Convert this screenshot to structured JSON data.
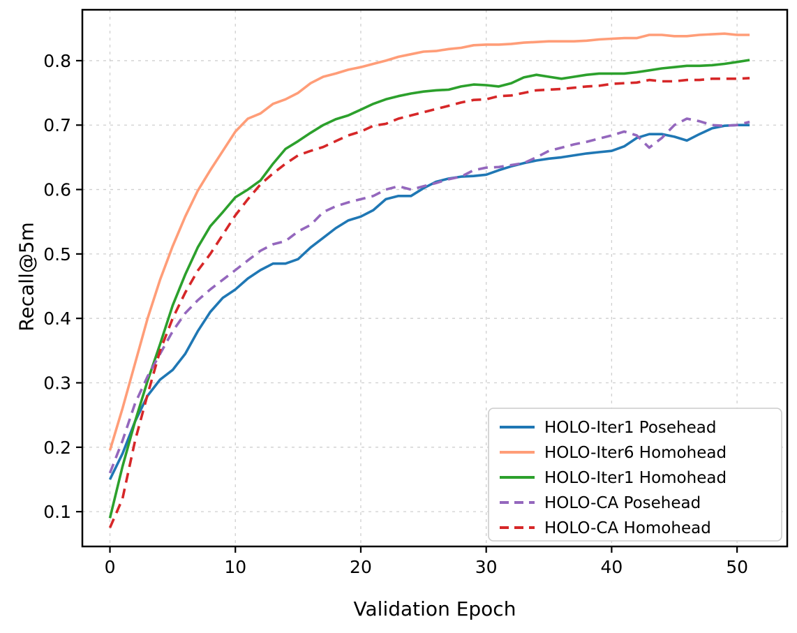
{
  "chart_data": {
    "type": "line",
    "title": "",
    "xlabel": "Validation Epoch",
    "ylabel": "Recall@5m",
    "xlim": [
      -2.2,
      54
    ],
    "ylim": [
      0.046,
      0.879
    ],
    "xticks": [
      0,
      10,
      20,
      30,
      40,
      50
    ],
    "yticks": [
      0.1,
      0.2,
      0.3,
      0.4,
      0.5,
      0.6,
      0.7,
      0.8
    ],
    "grid": true,
    "grid_style": "dashed",
    "legend_position": "lower right",
    "x": [
      0,
      1,
      2,
      3,
      4,
      5,
      6,
      7,
      8,
      9,
      10,
      11,
      12,
      13,
      14,
      15,
      16,
      17,
      18,
      19,
      20,
      21,
      22,
      23,
      24,
      25,
      26,
      27,
      28,
      29,
      30,
      31,
      32,
      33,
      34,
      35,
      36,
      37,
      38,
      39,
      40,
      41,
      42,
      43,
      44,
      45,
      46,
      47,
      48,
      49,
      50,
      51
    ],
    "series": [
      {
        "name": "HOLO-Iter1 Posehead",
        "color": "#1f77b4",
        "style": "solid",
        "values": [
          0.15,
          0.19,
          0.24,
          0.28,
          0.305,
          0.32,
          0.345,
          0.38,
          0.41,
          0.432,
          0.445,
          0.462,
          0.475,
          0.485,
          0.485,
          0.492,
          0.51,
          0.525,
          0.54,
          0.552,
          0.558,
          0.568,
          0.585,
          0.59,
          0.59,
          0.602,
          0.612,
          0.617,
          0.62,
          0.621,
          0.623,
          0.63,
          0.636,
          0.641,
          0.645,
          0.648,
          0.65,
          0.653,
          0.656,
          0.658,
          0.66,
          0.667,
          0.68,
          0.686,
          0.686,
          0.682,
          0.676,
          0.686,
          0.695,
          0.699,
          0.7,
          0.7
        ]
      },
      {
        "name": "HOLO-Iter6 Homohead",
        "color": "#ff9d78",
        "style": "solid",
        "values": [
          0.195,
          0.26,
          0.33,
          0.4,
          0.46,
          0.512,
          0.558,
          0.598,
          0.63,
          0.66,
          0.69,
          0.71,
          0.718,
          0.733,
          0.74,
          0.75,
          0.765,
          0.775,
          0.78,
          0.786,
          0.79,
          0.795,
          0.8,
          0.806,
          0.81,
          0.814,
          0.815,
          0.818,
          0.82,
          0.824,
          0.825,
          0.825,
          0.826,
          0.828,
          0.829,
          0.83,
          0.83,
          0.83,
          0.831,
          0.833,
          0.834,
          0.835,
          0.835,
          0.84,
          0.84,
          0.838,
          0.838,
          0.84,
          0.841,
          0.842,
          0.84,
          0.84
        ]
      },
      {
        "name": "HOLO-Iter1 Homohead",
        "color": "#2ca02c",
        "style": "solid",
        "values": [
          0.09,
          0.17,
          0.24,
          0.303,
          0.36,
          0.42,
          0.468,
          0.51,
          0.543,
          0.565,
          0.588,
          0.6,
          0.614,
          0.64,
          0.663,
          0.675,
          0.688,
          0.7,
          0.709,
          0.715,
          0.724,
          0.733,
          0.74,
          0.745,
          0.749,
          0.752,
          0.754,
          0.755,
          0.76,
          0.763,
          0.762,
          0.76,
          0.765,
          0.774,
          0.778,
          0.775,
          0.772,
          0.775,
          0.778,
          0.78,
          0.78,
          0.78,
          0.782,
          0.785,
          0.788,
          0.79,
          0.792,
          0.792,
          0.793,
          0.795,
          0.798,
          0.801
        ]
      },
      {
        "name": "HOLO-CA Posehead",
        "color": "#9467bd",
        "style": "dashed",
        "values": [
          0.16,
          0.21,
          0.268,
          0.31,
          0.345,
          0.38,
          0.408,
          0.428,
          0.445,
          0.46,
          0.475,
          0.49,
          0.505,
          0.515,
          0.52,
          0.535,
          0.545,
          0.565,
          0.574,
          0.58,
          0.585,
          0.59,
          0.6,
          0.605,
          0.6,
          0.605,
          0.61,
          0.616,
          0.62,
          0.63,
          0.634,
          0.635,
          0.638,
          0.641,
          0.65,
          0.66,
          0.665,
          0.67,
          0.674,
          0.679,
          0.684,
          0.69,
          0.684,
          0.665,
          0.68,
          0.7,
          0.71,
          0.706,
          0.7,
          0.699,
          0.7,
          0.705
        ]
      },
      {
        "name": "HOLO-CA Homohead",
        "color": "#d62728",
        "style": "dashed",
        "values": [
          0.075,
          0.12,
          0.21,
          0.282,
          0.35,
          0.4,
          0.44,
          0.474,
          0.5,
          0.53,
          0.56,
          0.585,
          0.608,
          0.625,
          0.64,
          0.653,
          0.66,
          0.666,
          0.675,
          0.684,
          0.69,
          0.699,
          0.702,
          0.71,
          0.715,
          0.72,
          0.725,
          0.73,
          0.735,
          0.739,
          0.74,
          0.745,
          0.746,
          0.75,
          0.754,
          0.755,
          0.756,
          0.758,
          0.76,
          0.761,
          0.764,
          0.765,
          0.766,
          0.77,
          0.768,
          0.768,
          0.77,
          0.77,
          0.772,
          0.772,
          0.772,
          0.773
        ]
      }
    ]
  },
  "colors": {
    "spine": "#000000",
    "grid": "#cfcfcf",
    "legend_border": "#cccccc",
    "legend_bg": "#ffffff",
    "text": "#000000"
  }
}
